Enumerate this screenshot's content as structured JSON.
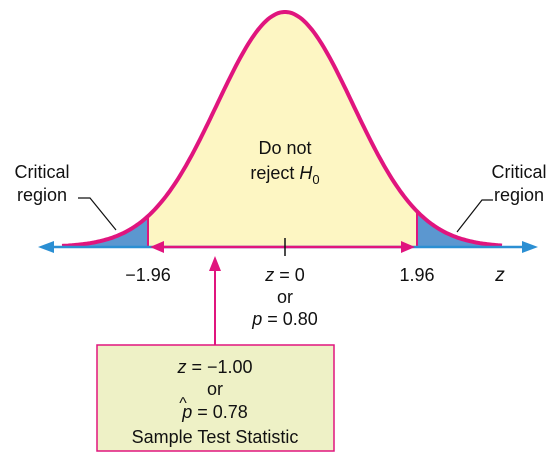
{
  "diagram": {
    "middle_label_line1": "Do not",
    "middle_label_line2_prefix": "reject ",
    "middle_label_H": "H",
    "middle_label_sub": "0",
    "left_region_line1": "Critical",
    "left_region_line2": "region",
    "right_region_line1": "Critical",
    "right_region_line2": "region",
    "left_critical_value": "−1.96",
    "right_critical_value": "1.96",
    "center_z_var": "z",
    "center_z_rest": " = 0",
    "center_or": "or",
    "center_p_var": "p",
    "center_p_rest": " = 0.80",
    "axis_variable": "z",
    "box_z_var": "z",
    "box_z_rest": " = −1.00",
    "box_or": "or",
    "box_phat_var": "p",
    "box_phat_hat": "^",
    "box_phat_rest": " = 0.78",
    "box_caption": "Sample Test Statistic"
  },
  "colors": {
    "curve": "#e0157e",
    "acceptance_fill": "#fdf6c3",
    "critical_fill": "#5b97d0",
    "axis": "#2b8fd3",
    "arrow": "#e0157e",
    "box_fill": "#eef1c6",
    "box_border": "#e0157e"
  }
}
